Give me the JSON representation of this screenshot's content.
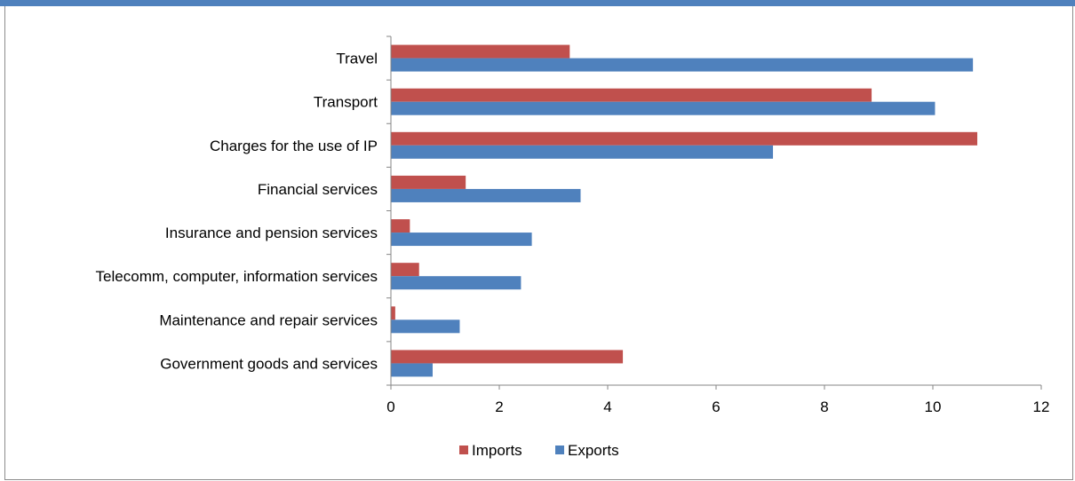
{
  "chart_data": {
    "type": "bar",
    "orientation": "horizontal",
    "categories": [
      "Travel",
      "Transport",
      "Charges for the use of IP",
      "Financial services",
      "Insurance and pension services",
      "Telecomm, computer, information services",
      "Maintenance and repair services",
      "Government goods and services"
    ],
    "series": [
      {
        "name": "Imports",
        "color": "#c0504d",
        "values": [
          3.3,
          8.87,
          10.82,
          1.38,
          0.35,
          0.52,
          0.08,
          4.28
        ]
      },
      {
        "name": "Exports",
        "color": "#4f81bd",
        "values": [
          10.74,
          10.04,
          7.05,
          3.5,
          2.6,
          2.4,
          1.27,
          0.77
        ]
      }
    ],
    "xlim": [
      0,
      12
    ],
    "xticks": [
      0,
      2,
      4,
      6,
      8,
      10,
      12
    ],
    "title": "",
    "xlabel": "",
    "ylabel": "",
    "grid": false,
    "legend_position": "bottom"
  }
}
